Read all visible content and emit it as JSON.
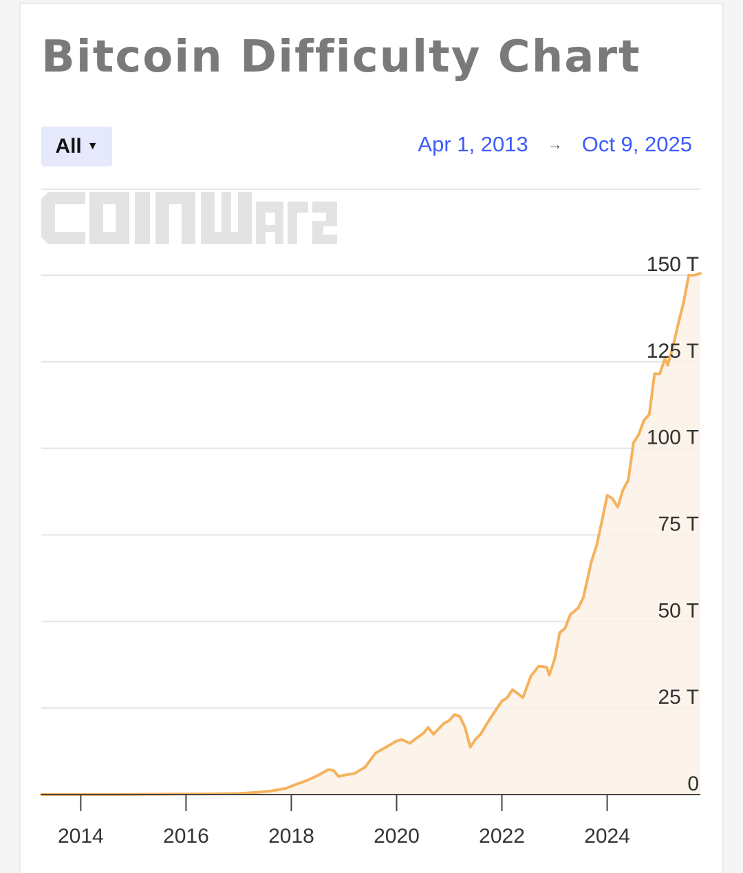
{
  "header": {
    "title": "Bitcoin Difficulty Chart"
  },
  "controls": {
    "range_selected": "All",
    "range_caret_icon": "caret-down-icon",
    "start_date": "Apr 1, 2013",
    "arrow": "→",
    "end_date": "Oct 9, 2025"
  },
  "watermark": "COINWARZ",
  "colors": {
    "line": "#f5b25d",
    "fill": "#fbf1e6",
    "grid": "#e4e4e4",
    "axis": "#444444",
    "link": "#3d5afe",
    "title": "#7a7a7a"
  },
  "chart_data": {
    "type": "area",
    "title": "Bitcoin Difficulty Chart",
    "xlabel": "",
    "ylabel": "",
    "xlim": [
      2013.25,
      2025.77
    ],
    "ylim": [
      0,
      150
    ],
    "y_unit": "T",
    "grid": true,
    "y_ticks": [
      {
        "value": 0,
        "label": "0"
      },
      {
        "value": 25,
        "label": "25 T"
      },
      {
        "value": 50,
        "label": "50 T"
      },
      {
        "value": 75,
        "label": "75 T"
      },
      {
        "value": 100,
        "label": "100 T"
      },
      {
        "value": 125,
        "label": "125 T"
      },
      {
        "value": 150,
        "label": "150 T"
      }
    ],
    "x_ticks": [
      {
        "value": 2014,
        "label": "2014"
      },
      {
        "value": 2016,
        "label": "2016"
      },
      {
        "value": 2018,
        "label": "2018"
      },
      {
        "value": 2020,
        "label": "2020"
      },
      {
        "value": 2022,
        "label": "2022"
      },
      {
        "value": 2024,
        "label": "2024"
      }
    ],
    "series": [
      {
        "x": [
          2013.25,
          2014.0,
          2015.0,
          2016.0,
          2016.5,
          2017.0,
          2017.3,
          2017.6,
          2017.9,
          2018.1,
          2018.3,
          2018.5,
          2018.7,
          2018.8,
          2018.9,
          2019.0,
          2019.2,
          2019.4,
          2019.6,
          2019.8,
          2020.0,
          2020.1,
          2020.25,
          2020.35,
          2020.5,
          2020.6,
          2020.7,
          2020.8,
          2020.9,
          2021.0,
          2021.1,
          2021.2,
          2021.3,
          2021.4,
          2021.5,
          2021.6,
          2021.7,
          2021.8,
          2022.0,
          2022.1,
          2022.2,
          2022.3,
          2022.4,
          2022.55,
          2022.7,
          2022.85,
          2022.9,
          2023.0,
          2023.1,
          2023.2,
          2023.3,
          2023.45,
          2023.55,
          2023.7,
          2023.8,
          2023.9,
          2024.0,
          2024.1,
          2024.2,
          2024.3,
          2024.4,
          2024.5,
          2024.6,
          2024.7,
          2024.8,
          2024.9,
          2025.0,
          2025.1,
          2025.15,
          2025.25,
          2025.35,
          2025.45,
          2025.55,
          2025.65,
          2025.77
        ],
        "y": [
          0.01,
          0.01,
          0.05,
          0.15,
          0.2,
          0.3,
          0.6,
          1.0,
          1.8,
          3.0,
          4.1,
          5.5,
          7.2,
          7.0,
          5.2,
          5.6,
          6.1,
          7.9,
          12.0,
          13.7,
          15.5,
          15.9,
          14.8,
          16.0,
          17.6,
          19.4,
          17.4,
          19.0,
          20.6,
          21.4,
          23.1,
          22.6,
          19.4,
          13.7,
          16.0,
          17.5,
          20.1,
          22.5,
          27.0,
          28.0,
          30.3,
          29.2,
          28.0,
          34.2,
          37.1,
          36.8,
          34.5,
          39.0,
          46.8,
          48.0,
          52.0,
          53.9,
          57.0,
          67.3,
          72.0,
          79.0,
          86.4,
          85.5,
          83.0,
          88.0,
          90.8,
          101.6,
          104.0,
          108.1,
          109.8,
          121.5,
          121.5,
          126.0,
          124.0,
          129.4,
          136.0,
          142.0,
          150.0,
          150.0,
          150.5
        ]
      }
    ]
  }
}
